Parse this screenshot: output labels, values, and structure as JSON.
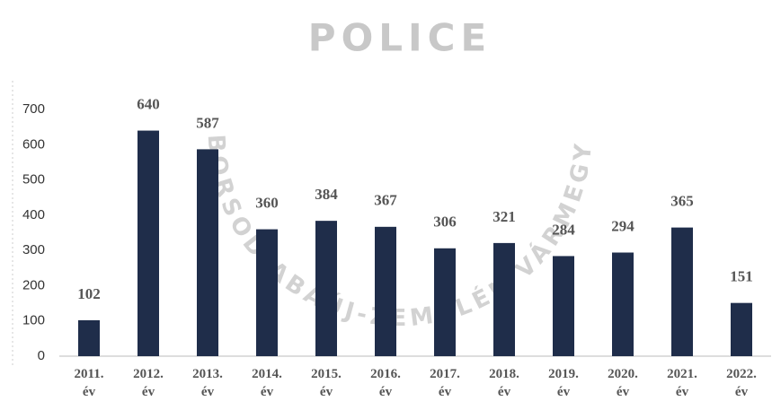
{
  "chart_data": {
    "type": "bar",
    "annotations": [
      "POLICE",
      "BORSOD-ABAÚJ-ZEMPLÉN VÁRMEGYE"
    ],
    "categories": [
      "2011. év",
      "2012. év",
      "2013. év",
      "2014. év",
      "2015. év",
      "2016. év",
      "2017. év",
      "2018. év",
      "2019. év",
      "2020. év",
      "2021. év",
      "2022. év"
    ],
    "values": [
      102,
      640,
      587,
      360,
      384,
      367,
      306,
      321,
      284,
      294,
      365,
      151
    ],
    "color": "#1f2d4a",
    "ylim": [
      0,
      700
    ],
    "yticks": [
      0,
      100,
      200,
      300,
      400,
      500,
      600,
      700
    ],
    "grid": false
  }
}
